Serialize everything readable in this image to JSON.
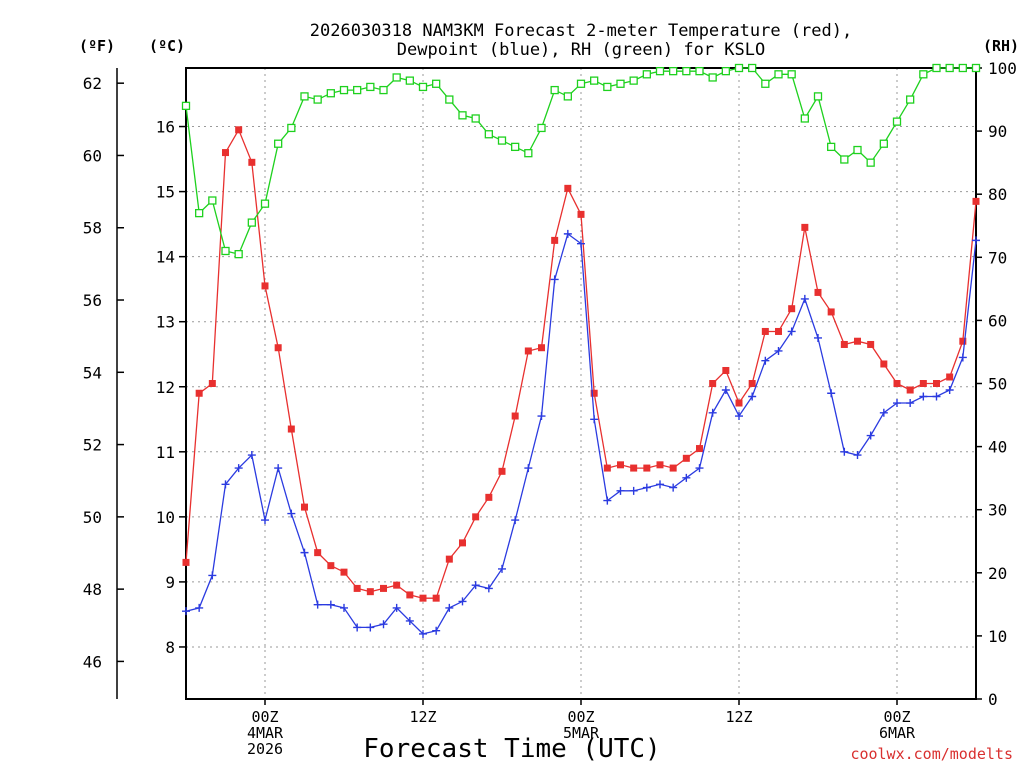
{
  "chart_data": {
    "type": "line",
    "title_line1": "2026030318 NAM3KM Forecast 2-meter Temperature (red),",
    "title_line2": "Dewpoint (blue), RH (green) for KSLO",
    "xlabel": "Forecast Time (UTC)",
    "credit": "coolwx.com/modelts",
    "unit_labels": {
      "fahrenheit": "(ºF)",
      "celsius": "(ºC)",
      "rh": "(RH)"
    },
    "x_range_hours": [
      -6,
      54
    ],
    "x_ticks": [
      {
        "hour": 0,
        "line1": "00Z",
        "line2": "4MAR",
        "line3": "2026"
      },
      {
        "hour": 12,
        "line1": "12Z",
        "line2": "",
        "line3": ""
      },
      {
        "hour": 24,
        "line1": "00Z",
        "line2": "5MAR",
        "line3": ""
      },
      {
        "hour": 36,
        "line1": "12Z",
        "line2": "",
        "line3": ""
      },
      {
        "hour": 48,
        "line1": "00Z",
        "line2": "6MAR",
        "line3": ""
      }
    ],
    "y_celsius": {
      "range": [
        7.2,
        16.9
      ],
      "ticks": [
        8,
        9,
        10,
        11,
        12,
        13,
        14,
        15,
        16
      ]
    },
    "y_fahrenheit": {
      "ticks": [
        46,
        48,
        50,
        52,
        54,
        56,
        58,
        60,
        62
      ]
    },
    "y_rh": {
      "range": [
        0,
        100
      ],
      "ticks": [
        0,
        10,
        20,
        30,
        40,
        50,
        60,
        70,
        80,
        90,
        100
      ]
    },
    "series": [
      {
        "name": "Temperature",
        "color": "#e8302f",
        "unit": "C",
        "start_hour": -6,
        "values": [
          9.3,
          11.9,
          12.05,
          15.6,
          15.95,
          15.45,
          13.55,
          12.6,
          11.35,
          10.15,
          9.45,
          9.25,
          9.15,
          8.9,
          8.85,
          8.9,
          8.95,
          8.8,
          8.75,
          8.75,
          9.35,
          9.6,
          10.0,
          10.3,
          10.7,
          11.55,
          12.55,
          12.6,
          14.25,
          15.05,
          14.65,
          11.9,
          10.75,
          10.8,
          10.75,
          10.75,
          10.8,
          10.75,
          10.9,
          11.05,
          12.05,
          12.25,
          11.75,
          12.05,
          12.85,
          12.85,
          13.2,
          14.45,
          13.45,
          13.15,
          12.65,
          12.7,
          12.65,
          12.35,
          12.05,
          11.95,
          12.05,
          12.05,
          12.15,
          12.7,
          14.85
        ]
      },
      {
        "name": "Dewpoint",
        "color": "#2b3be0",
        "unit": "C",
        "start_hour": -6,
        "values": [
          8.55,
          8.6,
          9.1,
          10.5,
          10.75,
          10.95,
          9.95,
          10.75,
          10.05,
          9.45,
          8.65,
          8.65,
          8.6,
          8.3,
          8.3,
          8.35,
          8.6,
          8.4,
          8.2,
          8.25,
          8.6,
          8.7,
          8.95,
          8.9,
          9.2,
          9.95,
          10.75,
          11.55,
          13.65,
          14.35,
          14.2,
          11.5,
          10.25,
          10.4,
          10.4,
          10.45,
          10.5,
          10.45,
          10.6,
          10.75,
          11.6,
          11.95,
          11.55,
          11.85,
          12.4,
          12.55,
          12.85,
          13.35,
          12.75,
          11.9,
          11.0,
          10.95,
          11.25,
          11.6,
          11.75,
          11.75,
          11.85,
          11.85,
          11.95,
          12.45,
          14.25
        ]
      },
      {
        "name": "Relative Humidity",
        "color": "#1ed11e",
        "unit": "RH",
        "start_hour": -6,
        "values": [
          94,
          77,
          79,
          71,
          70.5,
          75.5,
          78.5,
          88,
          90.5,
          95.5,
          95,
          96,
          96.5,
          96.5,
          97,
          96.5,
          98.5,
          98,
          97,
          97.5,
          95,
          92.5,
          92,
          89.5,
          88.5,
          87.5,
          86.5,
          90.5,
          96.5,
          95.5,
          97.5,
          98,
          97,
          97.5,
          98,
          99,
          99.5,
          99.5,
          99.5,
          99.5,
          98.5,
          99.5,
          100,
          100,
          97.5,
          99,
          99,
          92,
          95.5,
          87.5,
          85.5,
          87,
          85,
          88,
          91.5,
          95,
          99,
          100,
          100,
          100,
          100
        ]
      }
    ]
  }
}
